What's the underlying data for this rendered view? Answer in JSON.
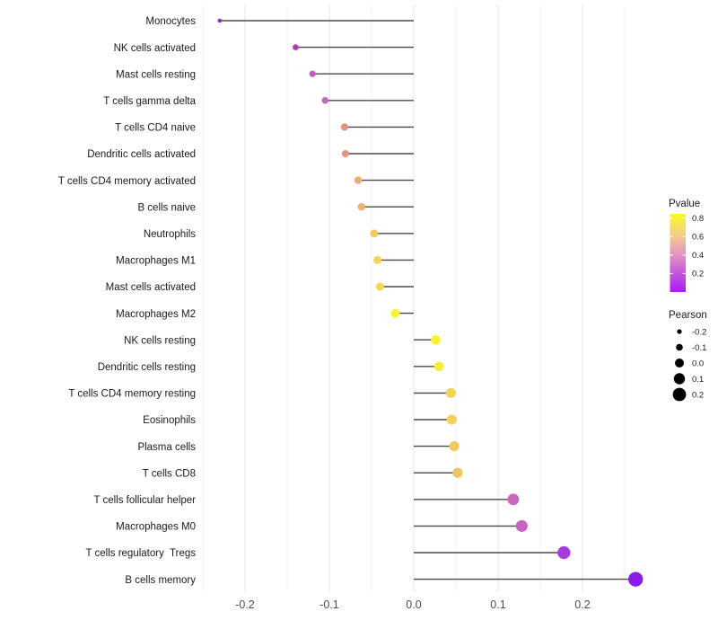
{
  "chart_data": {
    "type": "scatter",
    "style": "lollipop",
    "title": "",
    "xlabel": "",
    "ylabel": "",
    "categories": [
      "Monocytes",
      "NK cells activated",
      "Mast cells resting",
      "T cells gamma delta",
      "T cells CD4 naive",
      "Dendritic cells activated",
      "T cells CD4 memory activated",
      "B cells naive",
      "Neutrophils",
      "Macrophages M1",
      "Mast cells activated",
      "Macrophages M2",
      "NK cells resting",
      "Dendritic cells resting",
      "T cells CD4 memory resting",
      "Eosinophils",
      "Plasma cells",
      "T cells CD8",
      "T cells follicular helper",
      "Macrophages M0",
      "T cells regulatory  Tregs",
      "B cells memory"
    ],
    "series": [
      {
        "name": "Pearson",
        "values": [
          -0.23,
          -0.14,
          -0.12,
          -0.105,
          -0.082,
          -0.081,
          -0.066,
          -0.062,
          -0.047,
          -0.043,
          -0.04,
          -0.022,
          0.026,
          0.03,
          0.044,
          0.045,
          0.048,
          0.052,
          0.118,
          0.128,
          0.178,
          0.263
        ]
      }
    ],
    "point_colors": [
      "#8E27DF",
      "#B23CB8",
      "#C55CBB",
      "#C968B6",
      "#E6907E",
      "#E7937C",
      "#EEAC6F",
      "#EFB16D",
      "#F2C95E",
      "#F4D355",
      "#F5D650",
      "#FBF32C",
      "#FBF22E",
      "#F9EA38",
      "#F4D353",
      "#F4D055",
      "#F2CA5C",
      "#F0C363",
      "#C966BD",
      "#C761C2",
      "#A73BE2",
      "#8A1BEC"
    ],
    "xlim": [
      -0.25,
      0.267
    ],
    "x_tick_values": [
      -0.2,
      -0.1,
      0.0,
      0.1,
      0.2
    ],
    "x_tick_labels": [
      "-0.2",
      "-0.1",
      "0.0",
      "0.1",
      "0.2"
    ],
    "minor_tick_values": [
      -0.25,
      -0.15,
      -0.05,
      0.05,
      0.15,
      0.25
    ],
    "grid": {
      "on": true,
      "major_color": "#E4E4E4",
      "minor_color": "#F1F1F1"
    },
    "stem_color": "#4A4A4A",
    "axis_text_color": "#4D4D4D",
    "label_color": "#1A1A1A",
    "legend_position": "right",
    "legends": {
      "pvalue": {
        "title": "Pvalue",
        "tick_labels": [
          "0.8",
          "0.6",
          "0.4",
          "0.2"
        ],
        "tick_values": [
          0.8,
          0.6,
          0.4,
          0.2
        ],
        "bar_range": [
          0,
          0.845
        ],
        "gradient_stops": [
          {
            "value": 0.845,
            "color": "#FBF62B"
          },
          {
            "value": 0.8,
            "color": "#FAF231"
          },
          {
            "value": 0.6,
            "color": "#F3C98E"
          },
          {
            "value": 0.4,
            "color": "#E392C2"
          },
          {
            "value": 0.2,
            "color": "#C355DB"
          },
          {
            "value": 0.0,
            "color": "#A81BF7"
          }
        ]
      },
      "pearson": {
        "title": "Pearson",
        "entries": [
          {
            "label": "-0.2",
            "value": -0.2
          },
          {
            "label": "-0.1",
            "value": -0.1
          },
          {
            "label": "0.0",
            "value": 0.0
          },
          {
            "label": "0.1",
            "value": 0.1
          },
          {
            "label": "0.2",
            "value": 0.2
          }
        ],
        "dot_color": "#000000"
      }
    },
    "size_scale": {
      "base_radius": 5,
      "radius_per_unit": 12,
      "min_radius": 1.9
    }
  }
}
